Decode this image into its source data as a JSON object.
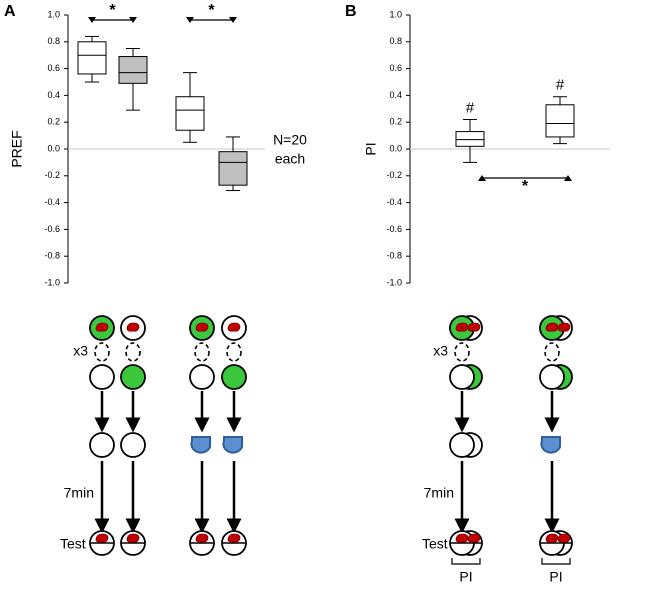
{
  "chart_data": [
    {
      "type": "box",
      "panel": "A",
      "ylabel": "PREF",
      "ylim": [
        -1,
        1
      ],
      "yticks": [
        {
          "value": 1,
          "label": "1.0"
        },
        0.8,
        0.6,
        0.4,
        0.2,
        {
          "value": 0,
          "label": "0.0"
        },
        -0.2,
        -0.4,
        -0.6,
        -0.8,
        {
          "value": -1,
          "label": "-1.0"
        }
      ],
      "boxes": [
        {
          "color": "#ffffff",
          "whisker_low": 0.5,
          "q1": 0.56,
          "median": 0.7,
          "q3": 0.8,
          "whisker_high": 0.84
        },
        {
          "color": "#c0c0c0",
          "whisker_low": 0.29,
          "q1": 0.49,
          "median": 0.57,
          "q3": 0.69,
          "whisker_high": 0.75
        },
        {
          "color": "#ffffff",
          "whisker_low": 0.05,
          "q1": 0.14,
          "median": 0.29,
          "q3": 0.39,
          "whisker_high": 0.57
        },
        {
          "color": "#c0c0c0",
          "whisker_low": -0.31,
          "q1": -0.27,
          "median": -0.1,
          "q3": -0.02,
          "whisker_high": 0.09
        }
      ],
      "significance": [
        "*",
        "*"
      ],
      "note": [
        "N=20",
        "each"
      ]
    },
    {
      "type": "box",
      "panel": "B",
      "ylabel": "PI",
      "ylim": [
        -1,
        1
      ],
      "yticks": [
        {
          "value": 1,
          "label": "1.0"
        },
        0.8,
        0.6,
        0.4,
        0.2,
        {
          "value": 0,
          "label": "0.0"
        },
        -0.2,
        -0.4,
        -0.6,
        -0.8,
        {
          "value": -1,
          "label": "-1.0"
        }
      ],
      "boxes": [
        {
          "color": "#ffffff",
          "whisker_low": -0.1,
          "q1": 0.02,
          "median": 0.07,
          "q3": 0.13,
          "whisker_high": 0.22
        },
        {
          "color": "#ffffff",
          "whisker_low": 0.04,
          "q1": 0.09,
          "median": 0.19,
          "q3": 0.33,
          "whisker_high": 0.39
        }
      ],
      "box_labels": [
        "#",
        "#"
      ],
      "significance": [
        "*"
      ]
    }
  ],
  "diagram": {
    "a": {
      "repeat": "x3",
      "delay": "7min",
      "test": "Test"
    },
    "b": {
      "repeat": "x3",
      "delay": "7min",
      "test": "Test",
      "brackets": [
        "PI",
        "PI"
      ]
    }
  }
}
